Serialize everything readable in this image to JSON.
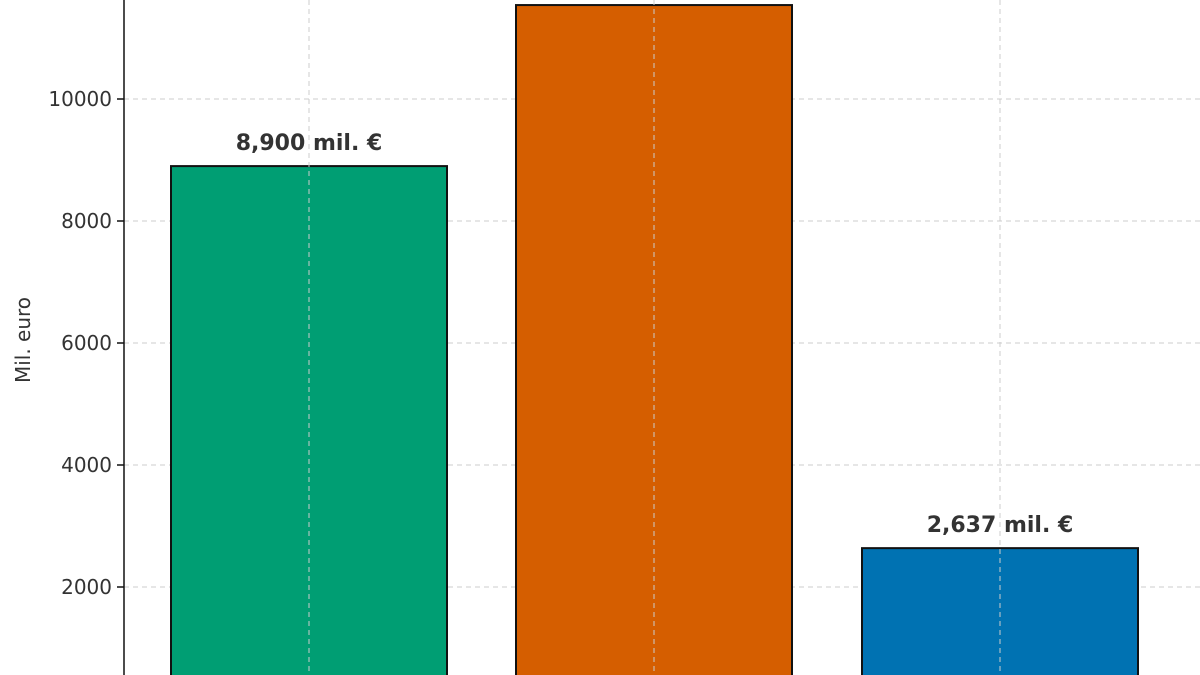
{
  "chart_data": {
    "type": "bar",
    "categories": [
      "",
      "",
      ""
    ],
    "values": [
      8900,
      11540,
      2637
    ],
    "colors": [
      "#009E73",
      "#D55E00",
      "#0072B2"
    ],
    "data_labels": [
      "8,900 mil. €",
      "",
      "2,637 mil. €"
    ],
    "ylabel": "Mil. euro",
    "yticks": [
      2000,
      4000,
      6000,
      8000,
      10000
    ],
    "ytick_labels": [
      "2000",
      "4000",
      "6000",
      "8000",
      "10000"
    ],
    "ylim": [
      800,
      11600
    ],
    "grid": true
  }
}
